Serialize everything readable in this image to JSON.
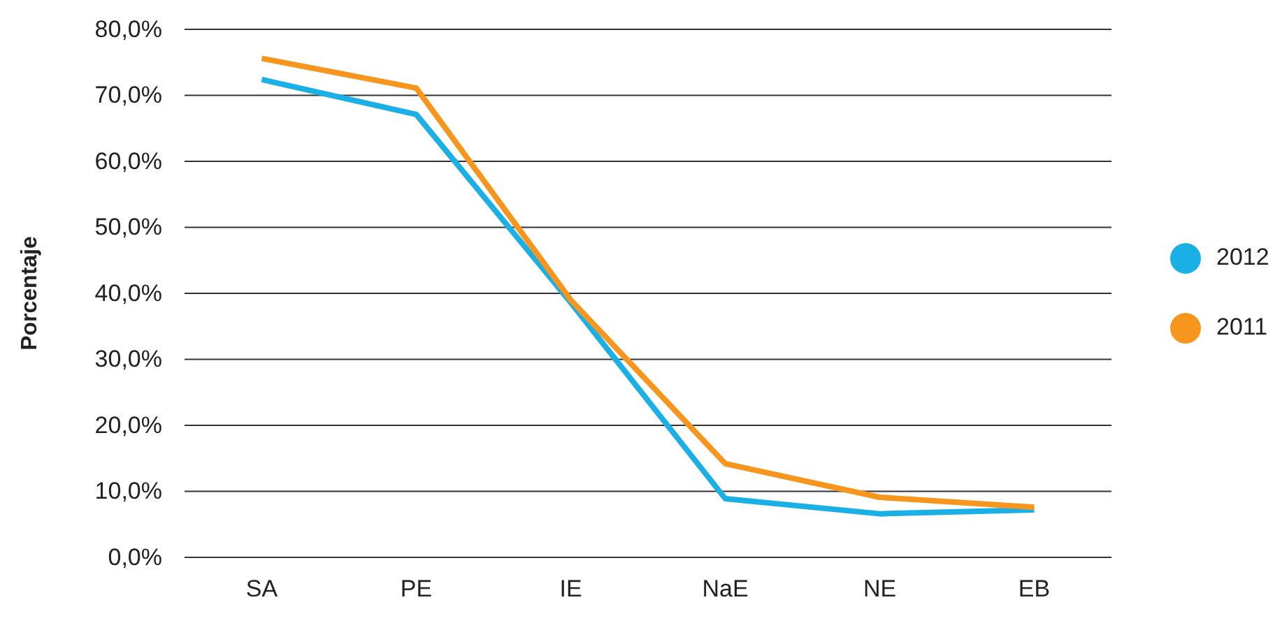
{
  "chart_data": {
    "type": "line",
    "ylabel": "Porcentaje",
    "categories": [
      "SA",
      "PE",
      "IE",
      "NaE",
      "NE",
      "EB"
    ],
    "series": [
      {
        "name": "2012",
        "color": "#1ab0e6",
        "values": [
          72.4,
          67.1,
          38.6,
          8.9,
          6.6,
          7.2
        ]
      },
      {
        "name": "2011",
        "color": "#f7961e",
        "values": [
          75.6,
          71.1,
          39.0,
          14.2,
          9.1,
          7.6
        ]
      }
    ],
    "ylim": [
      0,
      80
    ],
    "yticks": [
      {
        "value": 0,
        "label": "0,0%"
      },
      {
        "value": 10,
        "label": "10,0%"
      },
      {
        "value": 20,
        "label": "20,0%"
      },
      {
        "value": 30,
        "label": "30,0%"
      },
      {
        "value": 40,
        "label": "40,0%"
      },
      {
        "value": 50,
        "label": "50,0%"
      },
      {
        "value": 60,
        "label": "60,0%"
      },
      {
        "value": 70,
        "label": "70,0%"
      },
      {
        "value": 80,
        "label": "80,0%"
      }
    ],
    "grid": "y",
    "legend": "right",
    "marker": "none",
    "line_style": "solid"
  }
}
